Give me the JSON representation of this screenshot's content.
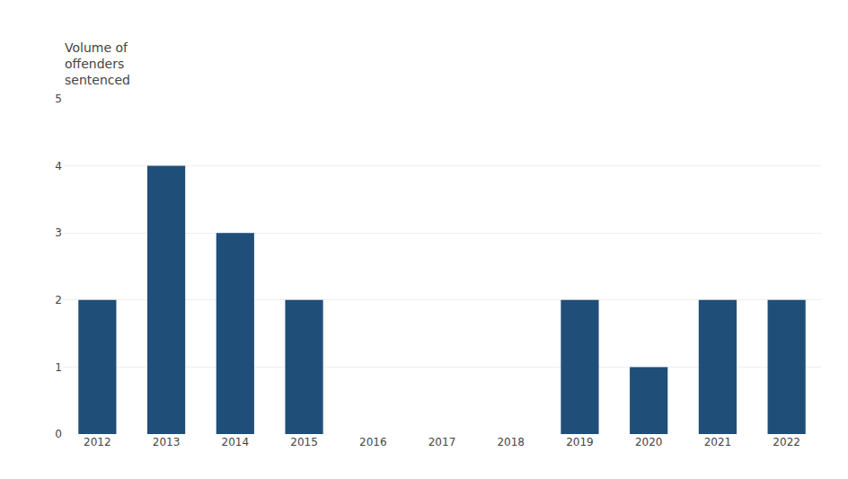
{
  "chart_data": {
    "type": "bar",
    "categories": [
      "2012",
      "2013",
      "2014",
      "2015",
      "2016",
      "2017",
      "2018",
      "2019",
      "2020",
      "2021",
      "2022"
    ],
    "values": [
      2,
      4,
      3,
      2,
      0,
      0,
      0,
      2,
      1,
      2,
      2
    ],
    "color": "#1f4e79",
    "ylabel": "Volume of\noffenders\nsentenced",
    "ylim": [
      0,
      5
    ],
    "yticks": [
      0,
      1,
      2,
      3,
      4,
      5
    ],
    "grid": true
  }
}
